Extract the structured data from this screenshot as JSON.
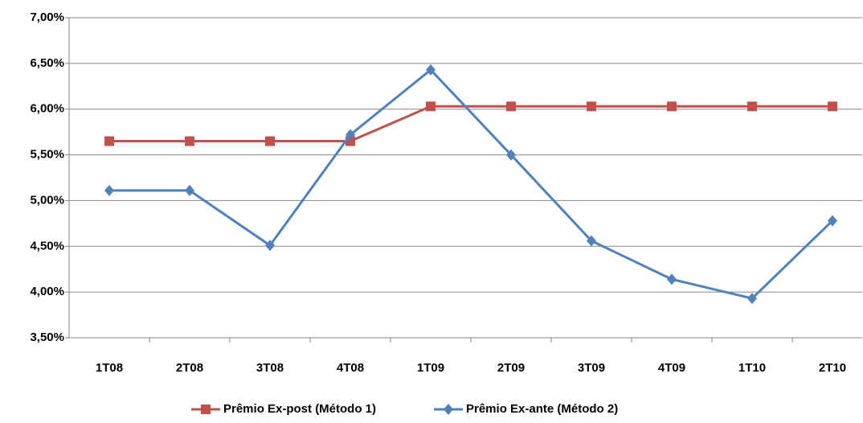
{
  "chart_data": {
    "type": "line",
    "categories": [
      "1T08",
      "2T08",
      "3T08",
      "4T08",
      "1T09",
      "2T09",
      "3T09",
      "4T09",
      "1T10",
      "2T10"
    ],
    "series": [
      {
        "name": "Prêmio Ex-post (Método 1)",
        "color": "#c0504d",
        "marker": "square",
        "values": [
          5.65,
          5.65,
          5.65,
          5.65,
          6.03,
          6.03,
          6.03,
          6.03,
          6.03,
          6.03
        ]
      },
      {
        "name": "Prêmio Ex-ante (Método 2)",
        "color": "#4f81bd",
        "marker": "diamond",
        "values": [
          5.11,
          5.11,
          4.51,
          5.72,
          6.43,
          5.5,
          4.56,
          4.14,
          3.93,
          4.78
        ]
      }
    ],
    "ylim": [
      3.5,
      7.0
    ],
    "yticks": [
      {
        "value": 3.5,
        "label": "3,50%"
      },
      {
        "value": 4.0,
        "label": "4,00%"
      },
      {
        "value": 4.5,
        "label": "4,50%"
      },
      {
        "value": 5.0,
        "label": "5,00%"
      },
      {
        "value": 5.5,
        "label": "5,50%"
      },
      {
        "value": 6.0,
        "label": "6,00%"
      },
      {
        "value": 6.5,
        "label": "6,50%"
      },
      {
        "value": 7.0,
        "label": "7,00%"
      }
    ],
    "grid": true,
    "legend": "bottom"
  }
}
